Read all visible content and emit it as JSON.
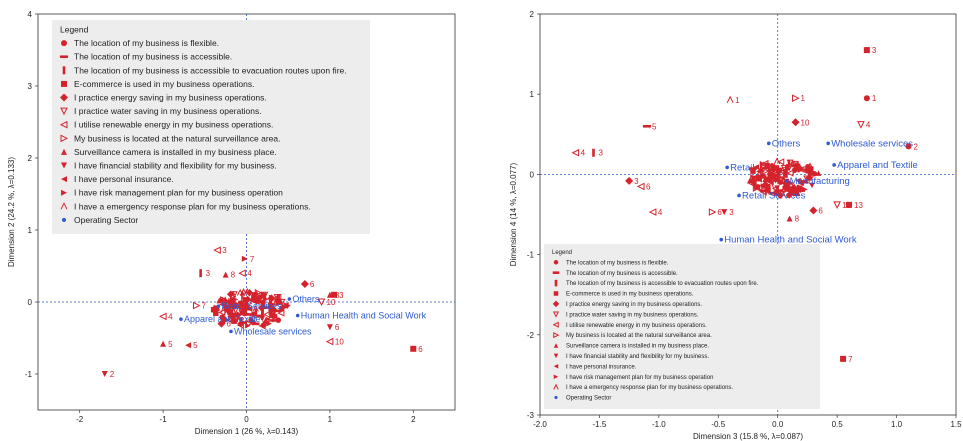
{
  "legend": {
    "title": "Legend",
    "items": [
      {
        "symbol": "circle",
        "label": "The location of my business is flexible."
      },
      {
        "symbol": "dash",
        "label": "The location of my business is accessible."
      },
      {
        "symbol": "bar",
        "label": "The location of my business is accessible to evacuation routes upon fire."
      },
      {
        "symbol": "square",
        "label": "E-commerce is used in my business operations."
      },
      {
        "symbol": "diamond",
        "label": "I practice energy saving in my business operations."
      },
      {
        "symbol": "triangle-down-open",
        "label": "I practice water saving in my business operations."
      },
      {
        "symbol": "triangle-left-open",
        "label": "I utilise renewable energy in my business operations."
      },
      {
        "symbol": "triangle-right-open",
        "label": "My business is located at the natural surveillance area."
      },
      {
        "symbol": "triangle-up",
        "label": "Surveillance camera is installed in my business place."
      },
      {
        "symbol": "triangle-down",
        "label": "I have financial stability and flexibility for my business."
      },
      {
        "symbol": "triangle-left",
        "label": "I have personal insurance."
      },
      {
        "symbol": "triangle-right",
        "label": "I have risk management plan for my business operation"
      },
      {
        "symbol": "caret-open",
        "label": "I have a emergency response plan for my business operations."
      },
      {
        "symbol": "dot-blue",
        "label": "Operating Sector"
      }
    ]
  },
  "chart_data": [
    {
      "type": "scatter",
      "xlabel": "Dimension 1  (26 %, λ=0.143)",
      "ylabel": "Dimension 2  (24.2 %, λ=0.133)",
      "xlim": [
        -2.5,
        2.5
      ],
      "ylim": [
        -1.5,
        4
      ],
      "x_ticks": [
        "-2",
        "-1",
        "0",
        "1",
        "2"
      ],
      "y_ticks": [
        "-1",
        "0",
        "1",
        "2",
        "3",
        "4"
      ],
      "sectors": [
        {
          "name": "Retail Services",
          "x": -0.3,
          "y": -0.1
        },
        {
          "name": "Apparel and Textile",
          "x": -0.75,
          "y": -0.28
        },
        {
          "name": "Human Health and Social Work",
          "x": 0.65,
          "y": -0.23
        },
        {
          "name": "Wholesale services",
          "x": -0.15,
          "y": -0.45
        },
        {
          "name": "Others",
          "x": 0.55,
          "y": 0.0
        }
      ],
      "points": [
        {
          "label": "2",
          "symbol": "triangle-down",
          "x": -1.7,
          "y": -1.0
        },
        {
          "label": "6",
          "symbol": "square",
          "x": 2.0,
          "y": -0.65
        },
        {
          "label": "3",
          "symbol": "triangle-left-open",
          "x": -0.35,
          "y": 0.72
        },
        {
          "label": "7",
          "symbol": "triangle-right",
          "x": -0.02,
          "y": 0.6
        },
        {
          "label": "3",
          "symbol": "bar",
          "x": -0.55,
          "y": 0.4
        },
        {
          "label": "8",
          "symbol": "triangle-up",
          "x": -0.25,
          "y": 0.38
        },
        {
          "label": "4",
          "symbol": "triangle-left-open",
          "x": -0.05,
          "y": 0.4
        },
        {
          "label": "6",
          "symbol": "diamond",
          "x": 0.7,
          "y": 0.25
        },
        {
          "label": "3",
          "symbol": "square",
          "x": 1.05,
          "y": 0.1
        },
        {
          "label": "8",
          "symbol": "triangle-up",
          "x": 1.0,
          "y": 0.1
        },
        {
          "label": "10",
          "symbol": "triangle-down-open",
          "x": 0.9,
          "y": 0.0
        },
        {
          "label": "6",
          "symbol": "triangle-down",
          "x": 1.0,
          "y": -0.35
        },
        {
          "label": "10",
          "symbol": "triangle-left-open",
          "x": 1.0,
          "y": -0.55
        },
        {
          "label": "5",
          "symbol": "triangle-left",
          "x": -0.7,
          "y": -0.6
        },
        {
          "label": "5",
          "symbol": "triangle-up",
          "x": -1.0,
          "y": -0.58
        },
        {
          "label": "4",
          "symbol": "triangle-left-open",
          "x": -1.0,
          "y": -0.2
        },
        {
          "label": "7",
          "symbol": "triangle-right-open",
          "x": -0.6,
          "y": -0.05
        },
        {
          "label": "6",
          "symbol": "diamond",
          "x": -0.3,
          "y": -0.3
        },
        {
          "label": "4",
          "symbol": "diamond",
          "x": 0.3,
          "y": 0.05
        },
        {
          "label": "1",
          "symbol": "circle",
          "x": 0.1,
          "y": 0.1
        }
      ]
    },
    {
      "type": "scatter",
      "xlabel": "Dimension 3  (15.8 %, λ=0.087)",
      "ylabel": "Dimension 4  (14 %, λ=0.077)",
      "xlim": [
        -2.0,
        1.5
      ],
      "ylim": [
        -3,
        2
      ],
      "x_ticks": [
        "-2.0",
        "-1.5",
        "-1.0",
        "-0.5",
        "0.0",
        "0.5",
        "1.0",
        "1.5"
      ],
      "y_ticks": [
        "-3",
        "-2",
        "-1",
        "0",
        "1",
        "2"
      ],
      "sectors": [
        {
          "name": "Others",
          "x": -0.05,
          "y": 0.35
        },
        {
          "name": "Wholesale services",
          "x": 0.45,
          "y": 0.35
        },
        {
          "name": "Apparel and Textile",
          "x": 0.5,
          "y": 0.08
        },
        {
          "name": "Retail",
          "x": -0.4,
          "y": 0.05
        },
        {
          "name": "Manufacturing",
          "x": 0.1,
          "y": -0.12
        },
        {
          "name": "Retail Services",
          "x": -0.3,
          "y": -0.3
        },
        {
          "name": "Human Health and Social Work",
          "x": -0.45,
          "y": -0.85
        }
      ],
      "points": [
        {
          "label": "3",
          "symbol": "square",
          "x": 0.75,
          "y": 1.55
        },
        {
          "label": "1",
          "symbol": "circle",
          "x": 0.75,
          "y": 0.95
        },
        {
          "label": "1",
          "symbol": "triangle-right-open",
          "x": 0.15,
          "y": 0.95
        },
        {
          "label": "1",
          "symbol": "caret-open",
          "x": -0.4,
          "y": 0.93
        },
        {
          "label": "5",
          "symbol": "dash",
          "x": -1.1,
          "y": 0.6
        },
        {
          "label": "3",
          "symbol": "bar",
          "x": -1.55,
          "y": 0.27
        },
        {
          "label": "4",
          "symbol": "triangle-left-open",
          "x": -1.7,
          "y": 0.27
        },
        {
          "label": "4",
          "symbol": "triangle-down-open",
          "x": 0.7,
          "y": 0.62
        },
        {
          "label": "10",
          "symbol": "diamond",
          "x": 0.15,
          "y": 0.65
        },
        {
          "label": "2",
          "symbol": "circle",
          "x": 1.1,
          "y": 0.35
        },
        {
          "label": "3",
          "symbol": "diamond",
          "x": -1.25,
          "y": -0.08
        },
        {
          "label": "6",
          "symbol": "triangle-left-open",
          "x": -1.15,
          "y": -0.15
        },
        {
          "label": "4",
          "symbol": "triangle-left-open",
          "x": -1.05,
          "y": -0.47
        },
        {
          "label": "6",
          "symbol": "triangle-right-open",
          "x": -0.55,
          "y": -0.47
        },
        {
          "label": "3",
          "symbol": "triangle-down",
          "x": -0.45,
          "y": -0.47
        },
        {
          "label": "7",
          "symbol": "square",
          "x": 0.55,
          "y": -2.3
        },
        {
          "label": "8",
          "symbol": "triangle-up",
          "x": 0.1,
          "y": -0.55
        },
        {
          "label": "6",
          "symbol": "diamond",
          "x": 0.3,
          "y": -0.45
        },
        {
          "label": "10",
          "symbol": "triangle-down-open",
          "x": 0.5,
          "y": -0.38
        },
        {
          "label": "13",
          "symbol": "square",
          "x": 0.6,
          "y": -0.38
        }
      ]
    }
  ]
}
